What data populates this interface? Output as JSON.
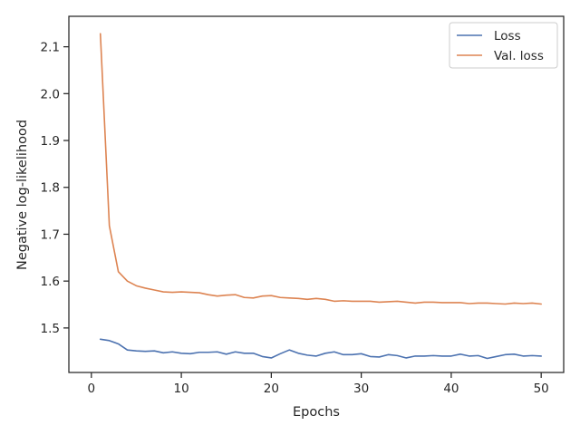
{
  "chart_data": {
    "type": "line",
    "xlabel": "Epochs",
    "ylabel": "Negative log-likelihood",
    "xlim": [
      -2.5,
      52.5
    ],
    "ylim": [
      1.405,
      2.165
    ],
    "xticks": [
      0,
      10,
      20,
      30,
      40,
      50
    ],
    "yticks": [
      1.5,
      1.6,
      1.7,
      1.8,
      1.9,
      2.0,
      2.1
    ],
    "xtick_labels": [
      "0",
      "10",
      "20",
      "30",
      "40",
      "50"
    ],
    "ytick_labels": [
      "1.5",
      "1.6",
      "1.7",
      "1.8",
      "1.9",
      "2.0",
      "2.1"
    ],
    "grid": false,
    "legend_position": "top-right",
    "x": [
      1,
      2,
      3,
      4,
      5,
      6,
      7,
      8,
      9,
      10,
      11,
      12,
      13,
      14,
      15,
      16,
      17,
      18,
      19,
      20,
      21,
      22,
      23,
      24,
      25,
      26,
      27,
      28,
      29,
      30,
      31,
      32,
      33,
      34,
      35,
      36,
      37,
      38,
      39,
      40,
      41,
      42,
      43,
      44,
      45,
      46,
      47,
      48,
      49,
      50
    ],
    "series": [
      {
        "name": "Loss",
        "color": "#4c72b0",
        "values": [
          1.476,
          1.473,
          1.466,
          1.453,
          1.451,
          1.45,
          1.451,
          1.447,
          1.449,
          1.446,
          1.445,
          1.448,
          1.448,
          1.449,
          1.444,
          1.449,
          1.446,
          1.446,
          1.439,
          1.436,
          1.445,
          1.453,
          1.446,
          1.442,
          1.44,
          1.446,
          1.449,
          1.443,
          1.443,
          1.445,
          1.439,
          1.438,
          1.443,
          1.441,
          1.436,
          1.44,
          1.44,
          1.441,
          1.44,
          1.44,
          1.444,
          1.44,
          1.441,
          1.435,
          1.439,
          1.443,
          1.444,
          1.44,
          1.441,
          1.44
        ]
      },
      {
        "name": "Val. loss",
        "color": "#dd8452",
        "values": [
          2.128,
          1.718,
          1.62,
          1.6,
          1.59,
          1.585,
          1.581,
          1.577,
          1.576,
          1.577,
          1.576,
          1.575,
          1.571,
          1.568,
          1.57,
          1.571,
          1.565,
          1.564,
          1.568,
          1.569,
          1.565,
          1.564,
          1.563,
          1.561,
          1.563,
          1.561,
          1.557,
          1.558,
          1.557,
          1.557,
          1.557,
          1.555,
          1.556,
          1.557,
          1.555,
          1.553,
          1.555,
          1.555,
          1.554,
          1.554,
          1.554,
          1.552,
          1.553,
          1.553,
          1.552,
          1.551,
          1.553,
          1.552,
          1.553,
          1.551
        ]
      }
    ]
  }
}
